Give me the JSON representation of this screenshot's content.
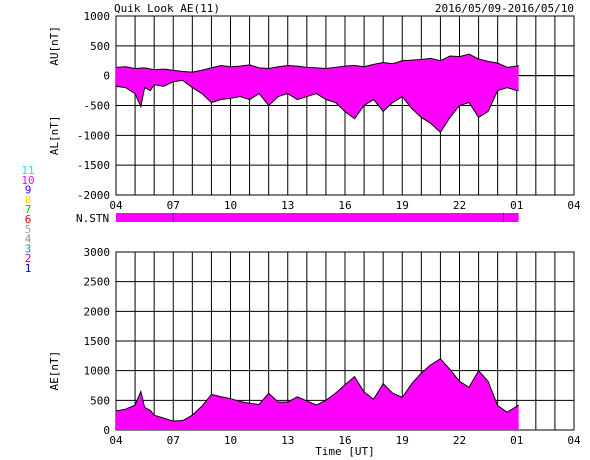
{
  "header": {
    "title": "Quik Look AE(11)",
    "date_range": "2016/05/09-2016/05/10"
  },
  "legend": {
    "stations": [
      {
        "label": "11",
        "color": "#00e8ff"
      },
      {
        "label": "10",
        "color": "#ff00ff"
      },
      {
        "label": "9",
        "color": "#2b00ff"
      },
      {
        "label": "8",
        "color": "#ffd700"
      },
      {
        "label": "7",
        "color": "#00c000"
      },
      {
        "label": "6",
        "color": "#ff0000"
      },
      {
        "label": "5",
        "color": "#a0a0a0"
      },
      {
        "label": "4",
        "color": "#909090"
      },
      {
        "label": "3",
        "color": "#00a0a0"
      },
      {
        "label": "2",
        "color": "#c000c0"
      },
      {
        "label": "1",
        "color": "#0000c0"
      }
    ]
  },
  "colors": {
    "fill": "#ff00ff",
    "line": "#000000",
    "grid": "#000000"
  },
  "chart_data": [
    {
      "type": "area",
      "panel": "AU/AL",
      "ylabel_top": "AU[nT]",
      "ylabel_bottom": "AL[nT]",
      "ylim": [
        -2000,
        1000
      ],
      "yticks": [
        1000,
        500,
        0,
        -500,
        -1000,
        -1500,
        -2000
      ],
      "xlim": [
        4,
        28
      ],
      "xticks": [
        "04",
        "07",
        "10",
        "13",
        "16",
        "19",
        "22",
        "01",
        "04"
      ],
      "x_data_end": 25.1,
      "au": {
        "x": [
          4.0,
          4.5,
          5.0,
          5.5,
          6.0,
          6.5,
          7.0,
          7.5,
          8.0,
          8.5,
          9.0,
          9.5,
          10.0,
          10.5,
          11.0,
          11.5,
          12.0,
          12.5,
          13.0,
          13.5,
          14.0,
          14.5,
          15.0,
          15.5,
          16.0,
          16.5,
          17.0,
          17.5,
          18.0,
          18.5,
          19.0,
          19.5,
          20.0,
          20.5,
          21.0,
          21.5,
          22.0,
          22.5,
          23.0,
          23.5,
          24.0,
          24.5,
          25.0,
          25.1
        ],
        "y": [
          140,
          150,
          120,
          130,
          100,
          110,
          90,
          70,
          60,
          90,
          130,
          170,
          150,
          160,
          180,
          130,
          120,
          150,
          170,
          160,
          140,
          130,
          120,
          140,
          160,
          170,
          150,
          190,
          220,
          200,
          250,
          260,
          270,
          290,
          250,
          330,
          320,
          360,
          280,
          240,
          210,
          140,
          160,
          170
        ]
      },
      "al": {
        "x": [
          4.0,
          4.5,
          5.0,
          5.3,
          5.5,
          5.8,
          6.0,
          6.5,
          7.0,
          7.5,
          8.0,
          8.5,
          9.0,
          9.5,
          10.0,
          10.5,
          11.0,
          11.5,
          12.0,
          12.5,
          13.0,
          13.5,
          14.0,
          14.5,
          15.0,
          15.5,
          16.0,
          16.5,
          17.0,
          17.5,
          18.0,
          18.5,
          19.0,
          19.5,
          20.0,
          20.5,
          21.0,
          21.5,
          22.0,
          22.5,
          23.0,
          23.5,
          24.0,
          24.5,
          25.0,
          25.1
        ],
        "y": [
          -180,
          -200,
          -300,
          -520,
          -200,
          -250,
          -150,
          -180,
          -100,
          -80,
          -200,
          -300,
          -450,
          -400,
          -380,
          -350,
          -400,
          -300,
          -500,
          -350,
          -300,
          -400,
          -350,
          -300,
          -400,
          -450,
          -600,
          -720,
          -500,
          -400,
          -600,
          -450,
          -350,
          -550,
          -700,
          -800,
          -950,
          -700,
          -500,
          -450,
          -700,
          -600,
          -250,
          -200,
          -250,
          -250
        ]
      }
    },
    {
      "type": "bar",
      "panel": "N.STN",
      "label": "N.STN",
      "xlim": [
        4,
        28
      ],
      "x_data_end": 25.1
    },
    {
      "type": "area",
      "panel": "AE",
      "ylabel": "AE[nT]",
      "xlabel": "Time [UT]",
      "ylim": [
        0,
        3000
      ],
      "yticks": [
        3000,
        2500,
        2000,
        1500,
        1000,
        500,
        0
      ],
      "xlim": [
        4,
        28
      ],
      "xticks": [
        "04",
        "07",
        "10",
        "13",
        "16",
        "19",
        "22",
        "01",
        "04"
      ],
      "x_data_end": 25.1,
      "ae": {
        "x": [
          4.0,
          4.5,
          5.0,
          5.3,
          5.5,
          5.8,
          6.0,
          6.5,
          7.0,
          7.5,
          8.0,
          8.5,
          9.0,
          9.5,
          10.0,
          10.5,
          11.0,
          11.5,
          12.0,
          12.5,
          13.0,
          13.5,
          14.0,
          14.5,
          15.0,
          15.5,
          16.0,
          16.5,
          17.0,
          17.5,
          18.0,
          18.5,
          19.0,
          19.5,
          20.0,
          20.5,
          21.0,
          21.5,
          22.0,
          22.5,
          23.0,
          23.5,
          24.0,
          24.5,
          25.0,
          25.1
        ],
        "y": [
          320,
          350,
          420,
          650,
          380,
          330,
          250,
          200,
          150,
          160,
          250,
          400,
          600,
          560,
          530,
          480,
          450,
          430,
          620,
          470,
          470,
          560,
          490,
          420,
          500,
          620,
          760,
          900,
          640,
          520,
          780,
          620,
          550,
          780,
          960,
          1100,
          1200,
          1020,
          820,
          720,
          1000,
          820,
          410,
          300,
          400,
          420
        ]
      }
    }
  ]
}
